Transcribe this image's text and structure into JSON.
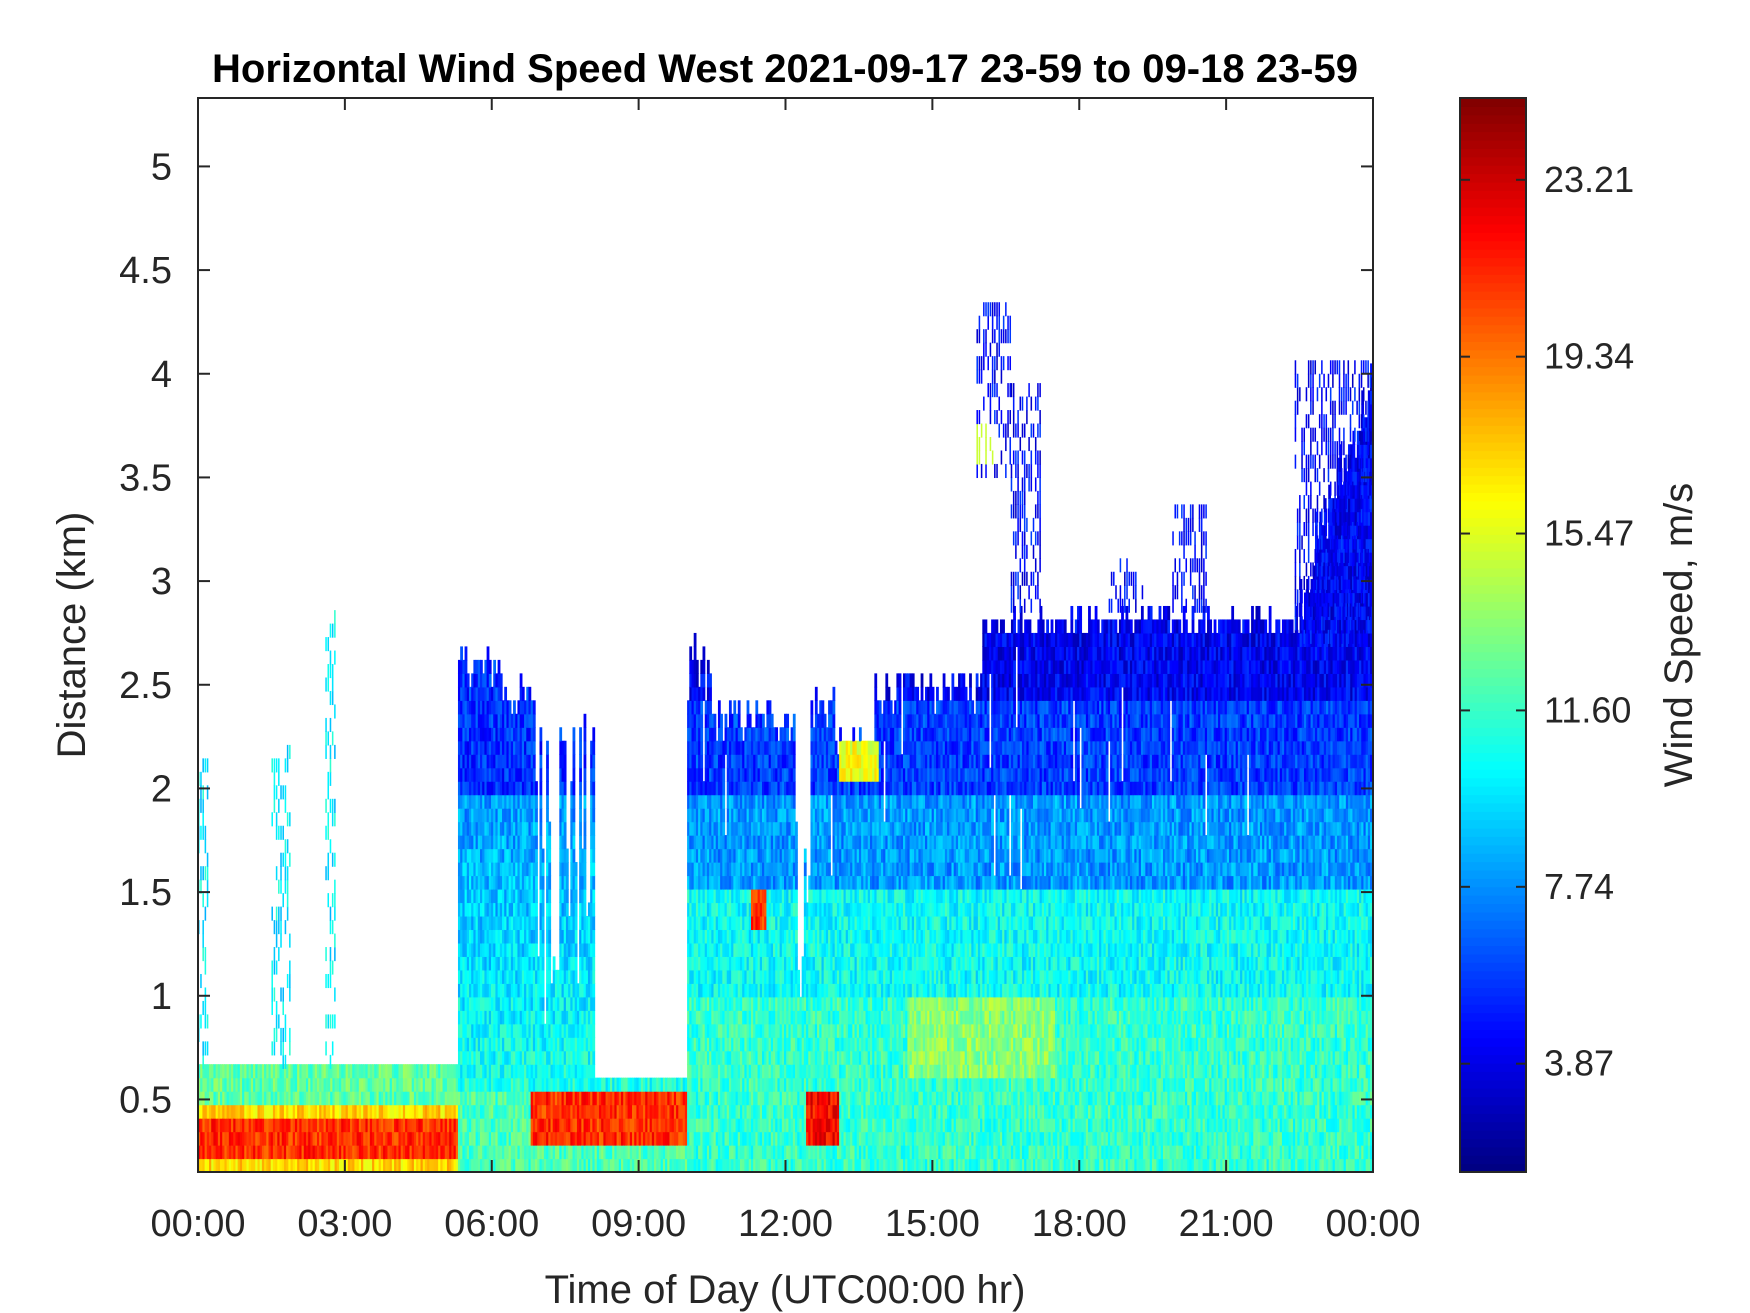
{
  "chart_data": {
    "type": "heatmap",
    "title": "Horizontal Wind Speed West 2021-09-17 23-59 to 09-18 23-59",
    "xlabel": "Time of Day (UTC00:00 hr)",
    "ylabel": "Distance (km)",
    "x_ticks": [
      "00:00",
      "03:00",
      "06:00",
      "09:00",
      "12:00",
      "15:00",
      "18:00",
      "21:00",
      "00:00"
    ],
    "x_range_hours": [
      0,
      24
    ],
    "y_ticks": [
      "0.5",
      "1",
      "1.5",
      "2",
      "2.5",
      "3",
      "3.5",
      "4",
      "4.5",
      "5"
    ],
    "y_tick_values": [
      0.5,
      1,
      1.5,
      2,
      2.5,
      3,
      3.5,
      4,
      4.5,
      5
    ],
    "y_range_km": [
      0.15,
      5.33
    ],
    "colorbar": {
      "label": "Wind Speed, m/s",
      "colormap": "jet",
      "range": [
        1.5,
        25.0
      ],
      "tick_labels": [
        "23.21",
        "19.34",
        "15.47",
        "11.60",
        "7.74",
        "3.87"
      ],
      "tick_values": [
        23.21,
        19.34,
        15.47,
        11.6,
        7.74,
        3.87
      ]
    },
    "grid": false,
    "regions": [
      {
        "t": [
          0.0,
          5.3
        ],
        "z": [
          0.15,
          0.65
        ],
        "speed": "very high (≈18–23 m/s) near 0.2–0.5 km, ~13 m/s above"
      },
      {
        "t": [
          5.3,
          10.0
        ],
        "z": [
          0.15,
          2.7
        ],
        "speed": "~9–13 m/s below 2 km, ~5 m/s near 2.5 km"
      },
      {
        "t": [
          6.8,
          10.0
        ],
        "z": [
          0.25,
          0.55
        ],
        "speed": "very high (≈20–23 m/s) low-level jet"
      },
      {
        "t": [
          10.0,
          24.0
        ],
        "z": [
          0.15,
          1.5
        ],
        "speed": "~9–14 m/s"
      },
      {
        "t": [
          10.0,
          24.0
        ],
        "z": [
          1.5,
          2.85
        ],
        "speed": "~4–8 m/s"
      },
      {
        "t": [
          13.1,
          13.9
        ],
        "z": [
          2.05,
          2.2
        ],
        "speed": "~16 m/s"
      },
      {
        "t": [
          16.0,
          17.0
        ],
        "z": [
          3.5,
          4.3
        ],
        "speed": "scattered ~5–14 m/s"
      },
      {
        "t": [
          22.4,
          24.0
        ],
        "z": [
          2.7,
          4.0
        ],
        "speed": "~4–6 m/s"
      }
    ]
  }
}
